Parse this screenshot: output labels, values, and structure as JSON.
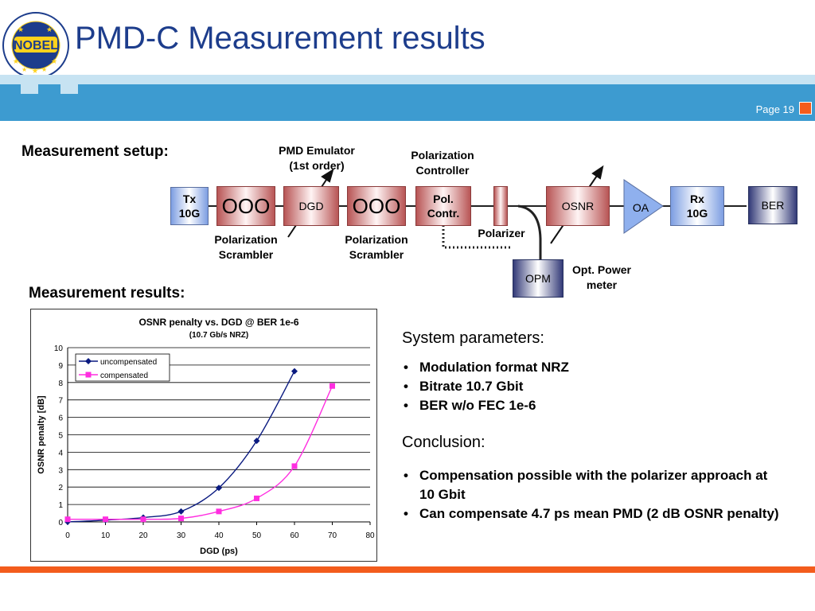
{
  "header": {
    "title": "PMD-C Measurement results",
    "page_label": "Page 19",
    "logo_text": "NOBEL",
    "colors": {
      "band": "#3d9bd0",
      "band_light": "#c7e3f2",
      "accent": "#f35c1c",
      "title": "#1d3d8c"
    }
  },
  "setup": {
    "heading": "Measurement setup:",
    "pmd_emulator_line1": "PMD Emulator",
    "pmd_emulator_line2": "(1st order)",
    "pol_controller_line1": "Polarization",
    "pol_controller_line2": "Controller",
    "tx_line1": "Tx",
    "tx_line2": "10G",
    "coil_1": "OOO",
    "dgd": "DGD",
    "coil_2": "OOO",
    "pol_contr_line1": "Pol.",
    "pol_contr_line2": "Contr.",
    "osnr": "OSNR",
    "oa": "OA",
    "rx_line1": "Rx",
    "rx_line2": "10G",
    "ber": "BER",
    "scrambler_1_line1": "Polarization",
    "scrambler_1_line2": "Scrambler",
    "scrambler_2_line1": "Polarization",
    "scrambler_2_line2": "Scrambler",
    "polarizer": "Polarizer",
    "opm": "OPM",
    "opm_label_line1": "Opt. Power",
    "opm_label_line2": "meter"
  },
  "results": {
    "heading": "Measurement results:"
  },
  "chart_data": {
    "type": "line",
    "title": "OSNR penalty vs. DGD @ BER 1e-6",
    "subtitle": "(10.7 Gb/s NRZ)",
    "xlabel": "DGD (ps)",
    "ylabel": "OSNR penalty [dB]",
    "xlim": [
      0,
      80
    ],
    "ylim": [
      0,
      10
    ],
    "xticks": [
      "0",
      "10",
      "20",
      "30",
      "40",
      "50",
      "60",
      "70",
      "80"
    ],
    "yticks": [
      "0",
      "1",
      "2",
      "3",
      "4",
      "5",
      "6",
      "7",
      "8",
      "9",
      "10"
    ],
    "grid": "horizontal",
    "legend": "top-left",
    "series": [
      {
        "name": "uncompensated",
        "color": "#0a1a80",
        "marker": "diamond",
        "x": [
          0,
          10,
          20,
          30,
          40,
          50,
          60
        ],
        "y": [
          0.0,
          0.1,
          0.25,
          0.6,
          1.95,
          4.65,
          8.65
        ]
      },
      {
        "name": "compensated",
        "color": "#ff2ee0",
        "marker": "square",
        "x": [
          0,
          10,
          20,
          30,
          40,
          50,
          60,
          70
        ],
        "y": [
          0.15,
          0.15,
          0.15,
          0.2,
          0.6,
          1.35,
          3.2,
          7.8
        ]
      }
    ]
  },
  "system": {
    "heading": "System parameters:",
    "items": [
      "Modulation format NRZ",
      "Bitrate 10.7 Gbit",
      "BER w/o FEC 1e-6"
    ]
  },
  "conclusion": {
    "heading": "Conclusion:",
    "items": [
      "Compensation possible with the polarizer approach at 10 Gbit",
      "Can compensate 4.7 ps mean PMD (2 dB OSNR penalty)"
    ]
  }
}
